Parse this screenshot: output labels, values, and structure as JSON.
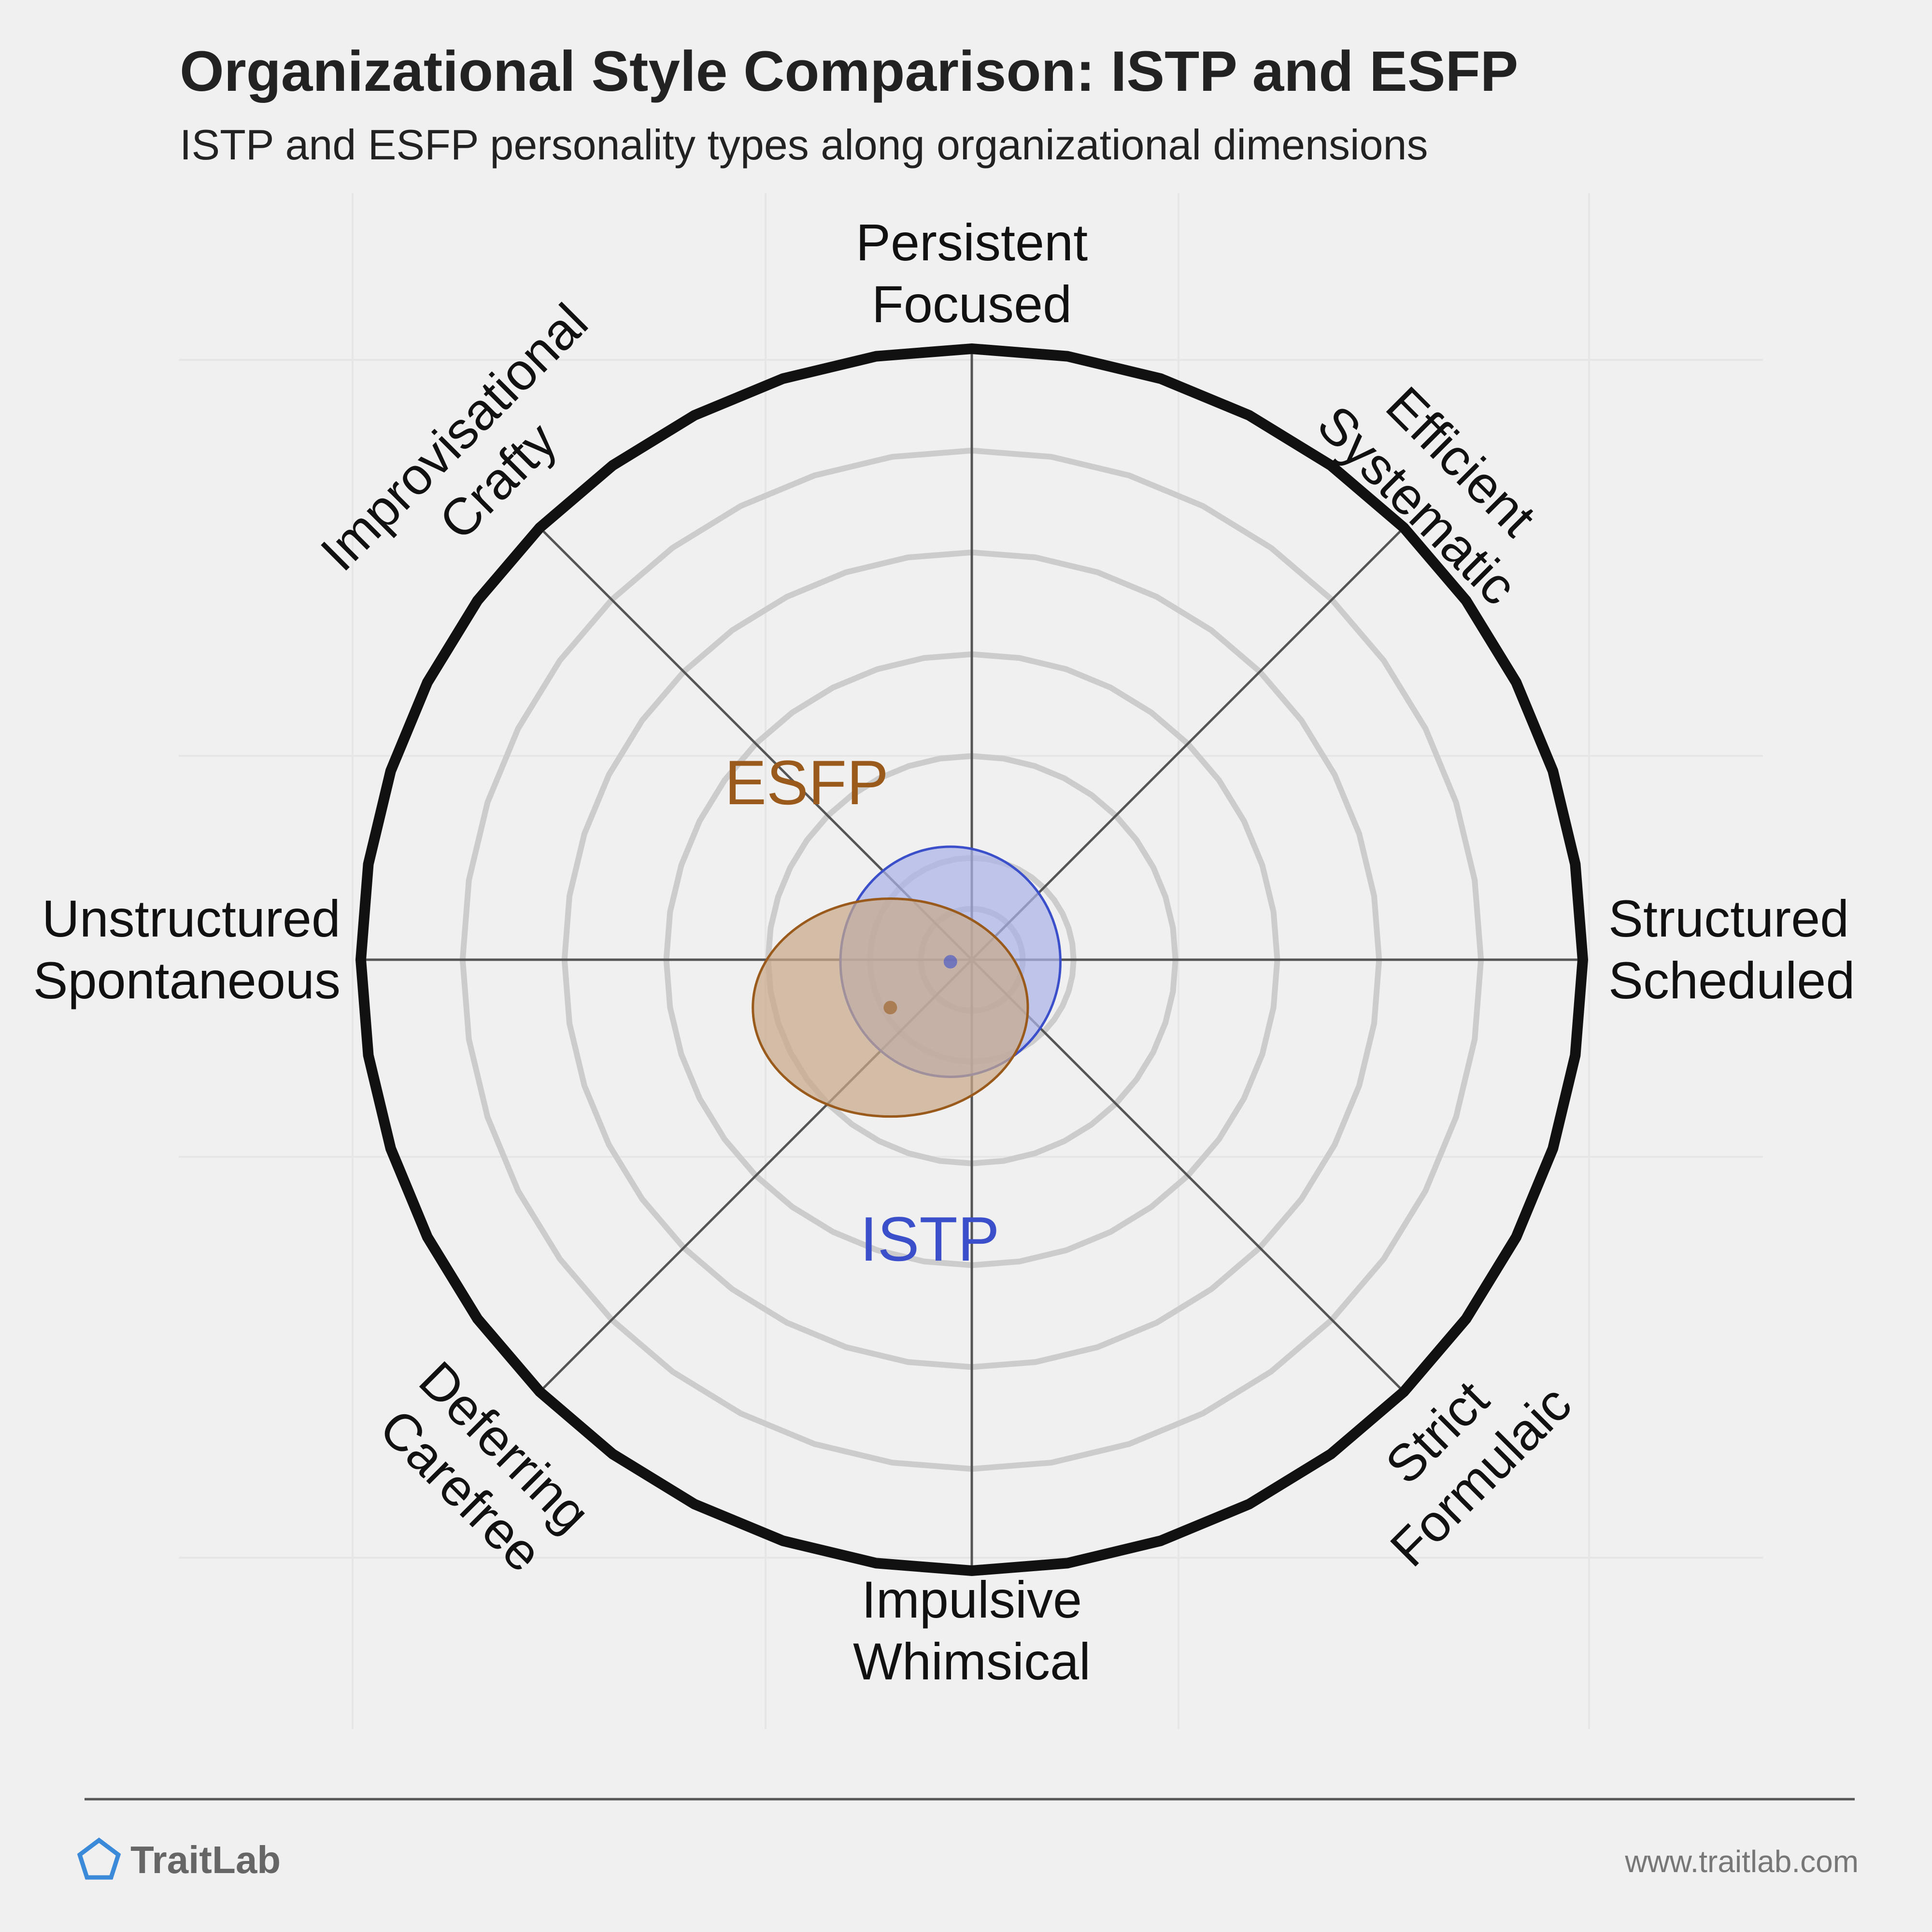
{
  "chart_data": {
    "type": "radar",
    "title": "Organizational Style Comparison: ISTP and ESFP",
    "subtitle": "ISTP and ESFP personality types along organizational dimensions",
    "axes": [
      {
        "angle_deg": 90,
        "lines": [
          "Persistent",
          "Focused"
        ]
      },
      {
        "angle_deg": 45,
        "lines": [
          "Efficient",
          "Systematic"
        ]
      },
      {
        "angle_deg": 0,
        "lines": [
          "Structured",
          "Scheduled"
        ]
      },
      {
        "angle_deg": -45,
        "lines": [
          "Strict",
          "Formulaic"
        ]
      },
      {
        "angle_deg": -90,
        "lines": [
          "Impulsive",
          "Whimsical"
        ]
      },
      {
        "angle_deg": -135,
        "lines": [
          "Deferring",
          "Carefree"
        ]
      },
      {
        "angle_deg": 180,
        "lines": [
          "Unstructured",
          "Spontaneous"
        ]
      },
      {
        "angle_deg": 135,
        "lines": [
          "Improvisational",
          "Crafty"
        ]
      }
    ],
    "range": [
      0,
      6
    ],
    "rings": 6,
    "series": [
      {
        "name": "ISTP",
        "center": [
          -0.21,
          -0.02
        ],
        "radius_x": 1.08,
        "radius_y": 1.13,
        "color": "#3a4fc9",
        "fill": "#aab3e8"
      },
      {
        "name": "ESFP",
        "center": [
          -0.8,
          -0.47
        ],
        "radius_x": 1.35,
        "radius_y": 1.07,
        "color": "#9a5a1b",
        "fill": "#c8a98a"
      }
    ],
    "inner_circle": {
      "center": [
        0,
        0
      ],
      "radius": 0.5
    }
  },
  "footer": {
    "brand": "TraitLab",
    "url": "www.traitlab.com"
  },
  "colors": {
    "background": "#f0f0f0",
    "ring": "#cccccc",
    "outer_ring": "#111111",
    "brand_icon": "#3b8ad9"
  }
}
